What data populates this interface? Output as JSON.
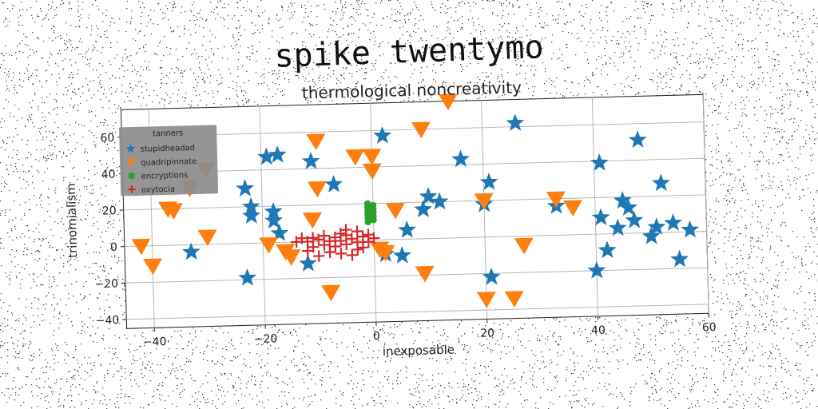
{
  "page": {
    "title": "spike twentymo"
  },
  "chart_data": {
    "type": "scatter",
    "title": "thermological noncreativity",
    "xlabel": "inexposable",
    "ylabel": "trinomialism",
    "xlim": [
      -45,
      60
    ],
    "ylim": [
      -45,
      75
    ],
    "xticks": [
      -40,
      -20,
      0,
      20,
      40,
      60
    ],
    "yticks": [
      -40,
      -20,
      0,
      20,
      40,
      60
    ],
    "grid": true,
    "legend": {
      "title": "tanners",
      "placement": "top-left"
    },
    "series": [
      {
        "name": "stupidheadad",
        "color": "#1f77b4",
        "marker": "star",
        "points": [
          [
            -23,
            30
          ],
          [
            -22,
            20
          ],
          [
            -22,
            15
          ],
          [
            -23,
            -19
          ],
          [
            -19,
            47
          ],
          [
            -17,
            48
          ],
          [
            -18,
            17
          ],
          [
            -18,
            12
          ],
          [
            -17,
            5
          ],
          [
            -11,
            44
          ],
          [
            -7,
            31
          ],
          [
            -12,
            -12
          ],
          [
            2,
            57
          ],
          [
            2,
            -8
          ],
          [
            5,
            -9
          ],
          [
            6,
            5
          ],
          [
            9,
            16
          ],
          [
            10,
            23
          ],
          [
            12,
            20
          ],
          [
            16,
            43
          ],
          [
            20,
            18
          ],
          [
            21,
            30
          ],
          [
            21,
            -22
          ],
          [
            26,
            62
          ],
          [
            33,
            16
          ],
          [
            40,
            -20
          ],
          [
            41,
            9
          ],
          [
            41,
            39
          ],
          [
            42,
            -9
          ],
          [
            44,
            3
          ],
          [
            45,
            18
          ],
          [
            46,
            14
          ],
          [
            47,
            7
          ],
          [
            48,
            51
          ],
          [
            50,
            -2
          ],
          [
            51,
            3
          ],
          [
            52,
            27
          ],
          [
            54,
            5
          ],
          [
            55,
            -15
          ],
          [
            57,
            1
          ],
          [
            -33,
            -4
          ]
        ]
      },
      {
        "name": "quadripinnate",
        "color": "#ff7f0e",
        "marker": "triangle-down",
        "points": [
          [
            -42,
            0
          ],
          [
            -40,
            -11
          ],
          [
            -37,
            20
          ],
          [
            -36,
            19
          ],
          [
            -33,
            31
          ],
          [
            -30,
            4
          ],
          [
            -30,
            41
          ],
          [
            -19,
            -1
          ],
          [
            -16,
            -5
          ],
          [
            -15,
            -8
          ],
          [
            -11,
            12
          ],
          [
            -10,
            55
          ],
          [
            -10,
            29
          ],
          [
            -8,
            -28
          ],
          [
            -3,
            46
          ],
          [
            0,
            46
          ],
          [
            0,
            38
          ],
          [
            1,
            -5
          ],
          [
            2,
            -7
          ],
          [
            4,
            16
          ],
          [
            9,
            60
          ],
          [
            9,
            -19
          ],
          [
            14,
            75
          ],
          [
            20,
            -34
          ],
          [
            20,
            20
          ],
          [
            25,
            -34
          ],
          [
            27,
            -5
          ],
          [
            33,
            20
          ],
          [
            36,
            15
          ]
        ]
      },
      {
        "name": "encryptions",
        "color": "#2ca02c",
        "marker": "circle",
        "points": [
          [
            -1,
            20
          ],
          [
            -1,
            18
          ],
          [
            -1,
            16
          ],
          [
            -1,
            14
          ],
          [
            -1,
            12
          ],
          [
            0,
            19
          ],
          [
            0,
            17
          ],
          [
            0,
            15
          ],
          [
            0,
            13
          ],
          [
            -1,
            10
          ],
          [
            0,
            11
          ]
        ]
      },
      {
        "name": "oxytocia",
        "color": "#d62728",
        "marker": "plus",
        "points": [
          [
            -14,
            0
          ],
          [
            -13,
            2
          ],
          [
            -12,
            0
          ],
          [
            -11,
            -3
          ],
          [
            -11,
            2
          ],
          [
            -10,
            -8
          ],
          [
            -10,
            1
          ],
          [
            -9,
            -2
          ],
          [
            -9,
            3
          ],
          [
            -8,
            -6
          ],
          [
            -8,
            0
          ],
          [
            -7,
            -3
          ],
          [
            -7,
            2
          ],
          [
            -6,
            0
          ],
          [
            -6,
            4
          ],
          [
            -5,
            -2
          ],
          [
            -5,
            3
          ],
          [
            -4,
            -8
          ],
          [
            -4,
            1
          ],
          [
            -3,
            5
          ],
          [
            -3,
            -1
          ],
          [
            -2,
            2
          ],
          [
            -2,
            -4
          ],
          [
            -1,
            3
          ],
          [
            -1,
            -1
          ],
          [
            0,
            1
          ],
          [
            -5,
            6
          ],
          [
            -6,
            -7
          ],
          [
            -12,
            -5
          ],
          [
            -3,
            -5
          ]
        ]
      }
    ]
  }
}
